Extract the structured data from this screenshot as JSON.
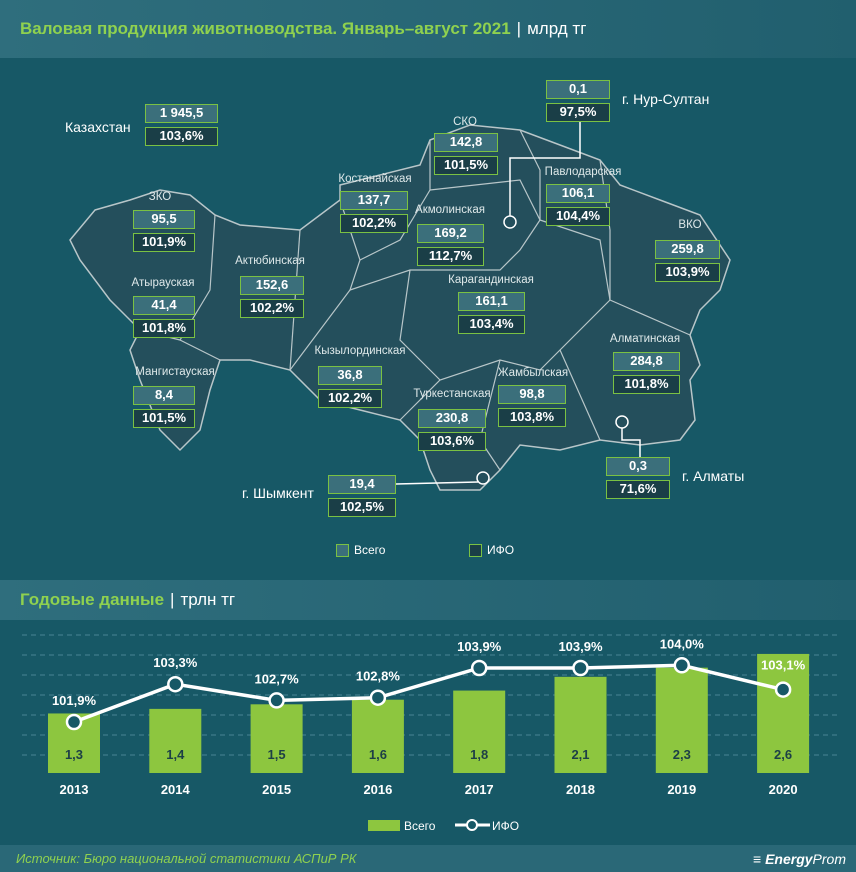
{
  "header": {
    "title": "Валовая продукция животноводства. Январь–август 2021",
    "unit": "млрд тг"
  },
  "country": {
    "name": "Казахстан",
    "total": "1 945,5",
    "ifo": "103,6%"
  },
  "regions": [
    {
      "name": "ЗКО",
      "total": "95,5",
      "ifo": "101,9%"
    },
    {
      "name": "Атырауская",
      "total": "41,4",
      "ifo": "101,8%"
    },
    {
      "name": "Мангистауская",
      "total": "8,4",
      "ifo": "101,5%"
    },
    {
      "name": "Актюбинская",
      "total": "152,6",
      "ifo": "102,2%"
    },
    {
      "name": "Костанайская",
      "total": "137,7",
      "ifo": "102,2%"
    },
    {
      "name": "Кызылординская",
      "total": "36,8",
      "ifo": "102,2%"
    },
    {
      "name": "СКО",
      "total": "142,8",
      "ifo": "101,5%"
    },
    {
      "name": "Акмолинская",
      "total": "169,2",
      "ifo": "112,7%"
    },
    {
      "name": "Карагандинская",
      "total": "161,1",
      "ifo": "103,4%"
    },
    {
      "name": "Туркестанская",
      "total": "230,8",
      "ifo": "103,6%"
    },
    {
      "name": "Жамбылская",
      "total": "98,8",
      "ifo": "103,8%"
    },
    {
      "name": "Павлодарская",
      "total": "106,1",
      "ifo": "104,4%"
    },
    {
      "name": "г. Нур-Султан",
      "total": "0,1",
      "ifo": "97,5%"
    },
    {
      "name": "ВКО",
      "total": "259,8",
      "ifo": "103,9%"
    },
    {
      "name": "Алматинская",
      "total": "284,8",
      "ifo": "101,8%"
    },
    {
      "name": "г. Алматы",
      "total": "0,3",
      "ifo": "71,6%"
    },
    {
      "name": "г. Шымкент",
      "total": "19,4",
      "ifo": "102,5%"
    }
  ],
  "map_legend": {
    "total": "Всего",
    "ifo": "ИФО"
  },
  "section2": {
    "title": "Годовые данные",
    "unit": "трлн тг"
  },
  "chart_data": {
    "type": "bar",
    "categories": [
      "2013",
      "2014",
      "2015",
      "2016",
      "2017",
      "2018",
      "2019",
      "2020"
    ],
    "series": [
      {
        "name": "Всего",
        "type": "bar",
        "values": [
          1.3,
          1.4,
          1.5,
          1.6,
          1.8,
          2.1,
          2.3,
          2.6
        ],
        "labels": [
          "1,3",
          "1,4",
          "1,5",
          "1,6",
          "1,8",
          "2,1",
          "2,3",
          "2,6"
        ],
        "color": "#8dc63f"
      },
      {
        "name": "ИФО",
        "type": "line",
        "values": [
          101.9,
          103.3,
          102.7,
          102.8,
          103.9,
          103.9,
          104.0,
          103.1
        ],
        "labels": [
          "101,9%",
          "103,3%",
          "102,7%",
          "102,8%",
          "103,9%",
          "103,9%",
          "104,0%",
          "103,1%"
        ],
        "color": "#ffffff"
      }
    ],
    "legend": "bottom-center",
    "grid": true
  },
  "footer": {
    "source": "Источник: Бюро национальной статистики АСПиР РК",
    "logo_bold": "Energy",
    "logo_light": "Prom"
  }
}
